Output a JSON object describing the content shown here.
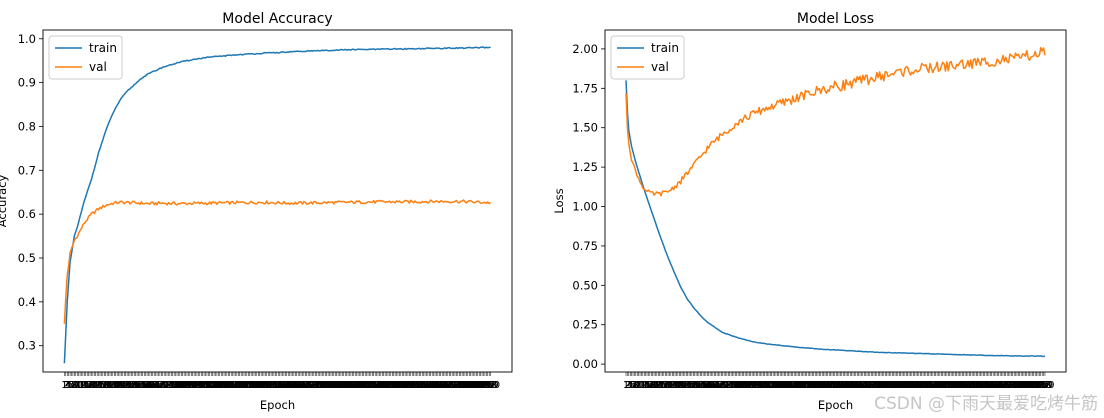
{
  "watermark": "CSDN @下雨天最爱吃烤牛筋",
  "colors": {
    "train": "#1f77b4",
    "val": "#ff7f0e"
  },
  "chart_data": [
    {
      "type": "line",
      "title": "Model Accuracy",
      "xlabel": "Epoch",
      "ylabel": "Accuracy",
      "x_range": [
        1,
        300
      ],
      "xlim": [
        -14,
        315
      ],
      "ylim": [
        0.24,
        1.02
      ],
      "yticks": [
        0.3,
        0.4,
        0.5,
        0.6,
        0.7,
        0.8,
        0.9,
        1.0
      ],
      "ytick_labels": [
        "0.3",
        "0.4",
        "0.5",
        "0.6",
        "0.7",
        "0.8",
        "0.9",
        "1.0"
      ],
      "grid": false,
      "legend": "top-left",
      "series": [
        {
          "name": "train",
          "color": "#1f77b4",
          "x": [
            1,
            2,
            3,
            5,
            8,
            10,
            15,
            20,
            25,
            30,
            35,
            40,
            45,
            50,
            55,
            60,
            70,
            80,
            90,
            100,
            120,
            140,
            160,
            180,
            200,
            220,
            240,
            260,
            280,
            300
          ],
          "y": [
            0.26,
            0.33,
            0.4,
            0.49,
            0.55,
            0.57,
            0.63,
            0.68,
            0.74,
            0.79,
            0.83,
            0.86,
            0.88,
            0.895,
            0.91,
            0.92,
            0.935,
            0.945,
            0.952,
            0.957,
            0.963,
            0.967,
            0.97,
            0.973,
            0.975,
            0.976,
            0.977,
            0.978,
            0.979,
            0.98
          ]
        },
        {
          "name": "val",
          "color": "#ff7f0e",
          "x": [
            1,
            2,
            3,
            5,
            8,
            10,
            15,
            20,
            25,
            30,
            35,
            40,
            50,
            60,
            70,
            80,
            100,
            120,
            140,
            160,
            180,
            200,
            220,
            240,
            260,
            280,
            300
          ],
          "y": [
            0.35,
            0.41,
            0.46,
            0.51,
            0.54,
            0.55,
            0.58,
            0.6,
            0.612,
            0.62,
            0.625,
            0.627,
            0.626,
            0.624,
            0.625,
            0.624,
            0.625,
            0.626,
            0.627,
            0.625,
            0.626,
            0.627,
            0.628,
            0.628,
            0.629,
            0.629,
            0.626
          ]
        }
      ]
    },
    {
      "type": "line",
      "title": "Model Loss",
      "xlabel": "Epoch",
      "ylabel": "Loss",
      "x_range": [
        1,
        300
      ],
      "xlim": [
        -14,
        315
      ],
      "ylim": [
        -0.05,
        2.12
      ],
      "yticks": [
        0.0,
        0.25,
        0.5,
        0.75,
        1.0,
        1.25,
        1.5,
        1.75,
        2.0
      ],
      "ytick_labels": [
        "0.00",
        "0.25",
        "0.50",
        "0.75",
        "1.00",
        "1.25",
        "1.50",
        "1.75",
        "2.00"
      ],
      "grid": false,
      "legend": "top-left",
      "series": [
        {
          "name": "train",
          "color": "#1f77b4",
          "x": [
            1,
            2,
            3,
            5,
            8,
            10,
            15,
            20,
            25,
            30,
            35,
            40,
            45,
            50,
            55,
            60,
            70,
            80,
            90,
            100,
            120,
            140,
            160,
            180,
            200,
            220,
            240,
            260,
            280,
            300
          ],
          "y": [
            1.8,
            1.6,
            1.48,
            1.38,
            1.28,
            1.22,
            1.08,
            0.95,
            0.82,
            0.7,
            0.59,
            0.49,
            0.41,
            0.35,
            0.3,
            0.26,
            0.2,
            0.17,
            0.145,
            0.13,
            0.11,
            0.095,
            0.085,
            0.075,
            0.07,
            0.065,
            0.06,
            0.055,
            0.052,
            0.05
          ]
        },
        {
          "name": "val",
          "color": "#ff7f0e",
          "x": [
            1,
            2,
            3,
            5,
            8,
            10,
            12,
            15,
            20,
            25,
            30,
            35,
            40,
            50,
            60,
            70,
            80,
            90,
            100,
            120,
            140,
            160,
            180,
            200,
            220,
            240,
            260,
            280,
            300
          ],
          "y": [
            1.72,
            1.5,
            1.4,
            1.3,
            1.22,
            1.18,
            1.14,
            1.1,
            1.08,
            1.08,
            1.09,
            1.12,
            1.16,
            1.27,
            1.38,
            1.46,
            1.53,
            1.58,
            1.62,
            1.68,
            1.74,
            1.78,
            1.82,
            1.86,
            1.88,
            1.9,
            1.92,
            1.94,
            1.98
          ]
        }
      ]
    }
  ]
}
